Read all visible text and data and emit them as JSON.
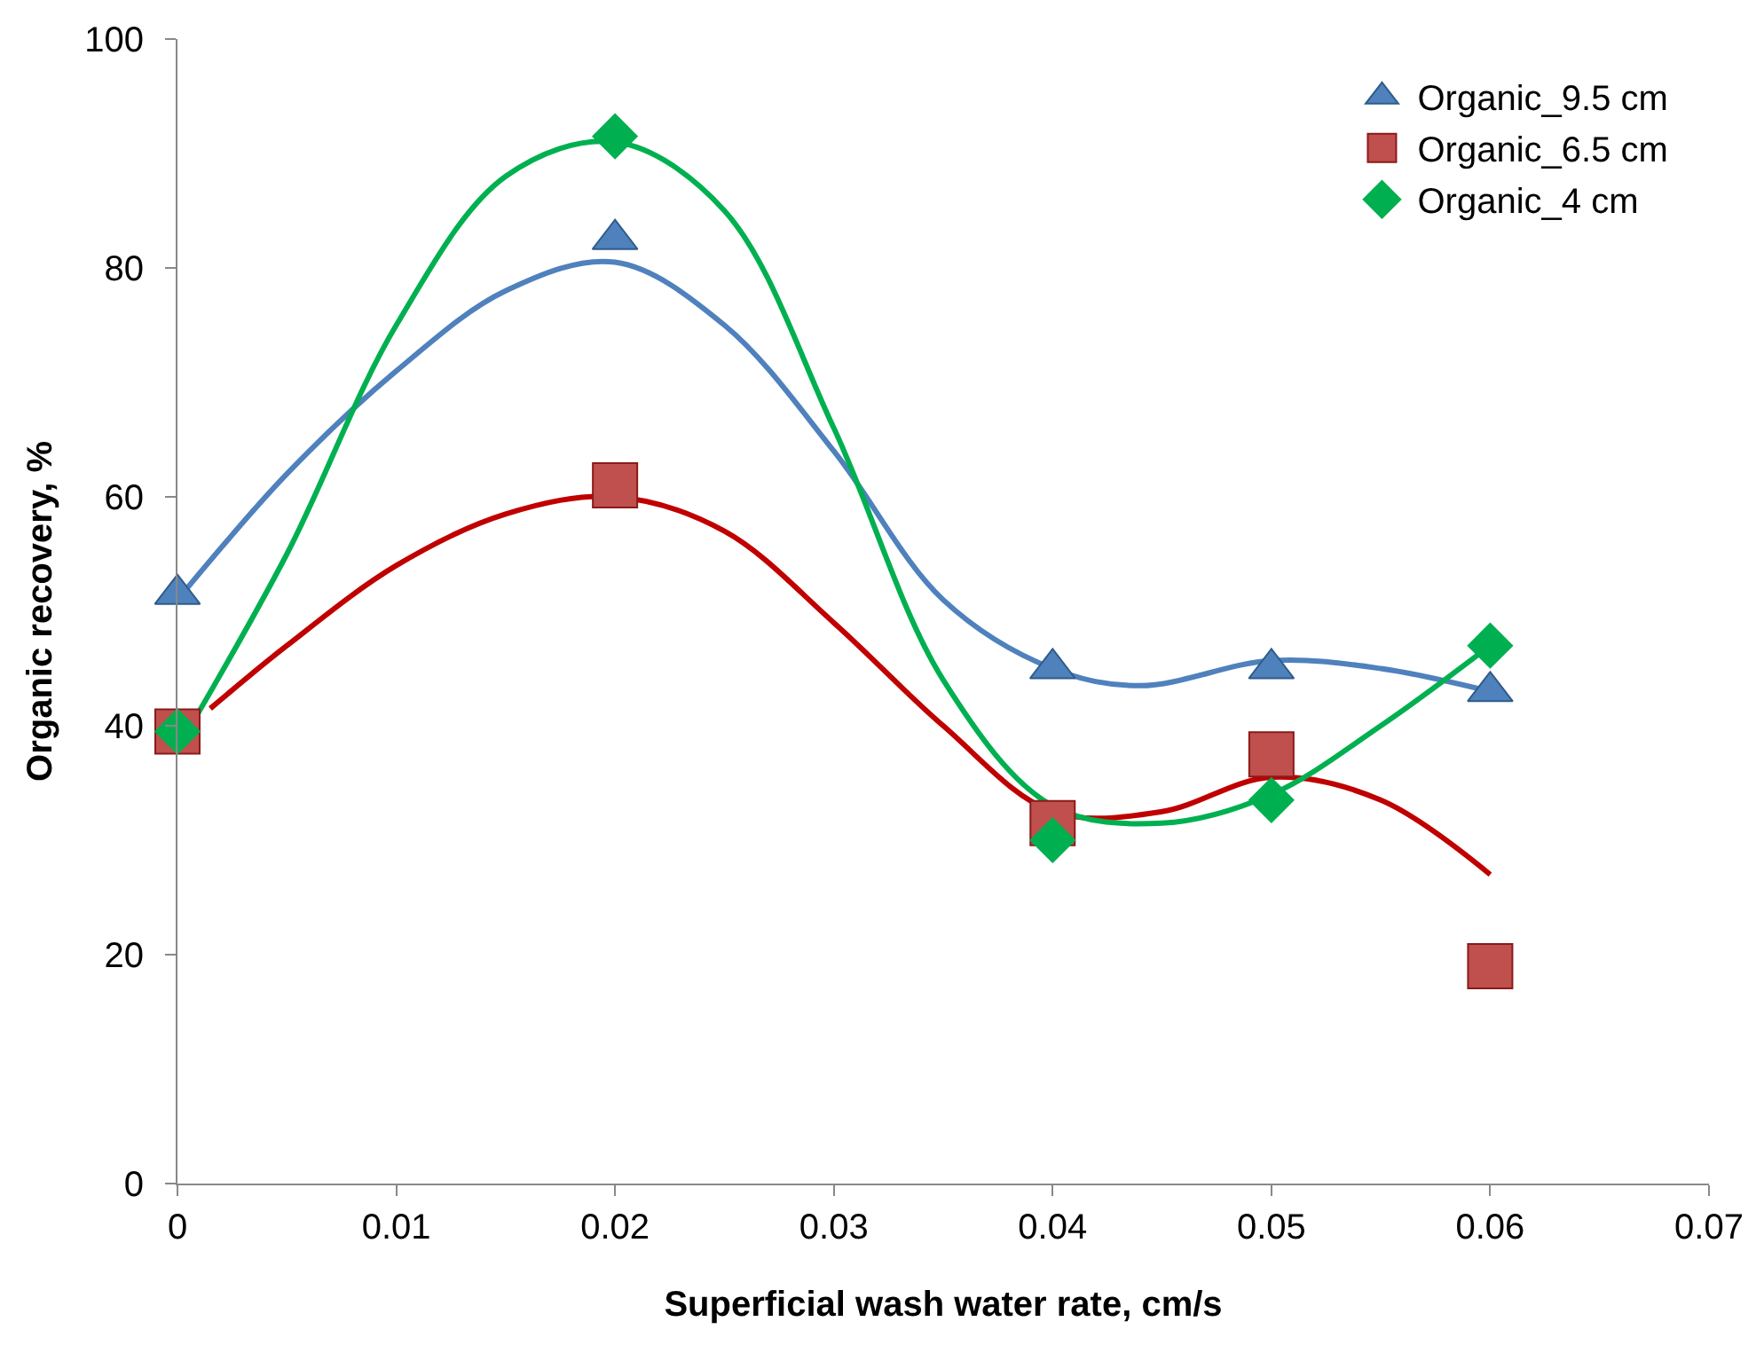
{
  "chart_data": {
    "type": "scatter",
    "xlabel": "Superficial wash water rate, cm/s",
    "ylabel": "Organic recovery, %",
    "x": [
      0,
      0.02,
      0.04,
      0.05,
      0.06
    ],
    "xlim": [
      0,
      0.07
    ],
    "xticks": [
      0,
      0.01,
      0.02,
      0.03,
      0.04,
      0.05,
      0.06,
      0.07
    ],
    "ylim": [
      0,
      100
    ],
    "yticks": [
      0,
      20,
      40,
      60,
      80,
      100
    ],
    "legend": "top right",
    "series": [
      {
        "name": "Organic_9.5 cm",
        "color": "#4f81bd",
        "marker": "triangle",
        "values": [
          51.5,
          82.5,
          45,
          45,
          43
        ]
      },
      {
        "name": "Organic_6.5 cm",
        "color": "#c0504d",
        "marker": "square",
        "values": [
          39.5,
          61,
          31.5,
          37.5,
          19
        ]
      },
      {
        "name": "Organic_4 cm",
        "color": "#00b050",
        "marker": "diamond",
        "values": [
          39.5,
          91.5,
          30,
          33.5,
          47
        ]
      },
      {
        "type": "line",
        "color": "#4f81bd",
        "marker": "none",
        "x": [
          0,
          0.005,
          0.01,
          0.015,
          0.02,
          0.025,
          0.03,
          0.035,
          0.04,
          0.044,
          0.05,
          0.055,
          0.06
        ],
        "values": [
          51,
          62,
          71,
          78,
          80.5,
          75,
          64,
          51,
          45,
          43.5,
          45.7,
          45,
          43
        ]
      },
      {
        "type": "line",
        "color": "#c00000",
        "marker": "none",
        "x": [
          0.0015,
          0.005,
          0.01,
          0.015,
          0.02,
          0.025,
          0.03,
          0.035,
          0.04,
          0.045,
          0.05,
          0.055,
          0.06
        ],
        "values": [
          41.5,
          47,
          54,
          58.5,
          60,
          57,
          49,
          40,
          32.5,
          32.5,
          35.5,
          33.5,
          27
        ]
      },
      {
        "type": "line",
        "color": "#00b050",
        "marker": "none",
        "x": [
          0,
          0.005,
          0.01,
          0.015,
          0.02,
          0.025,
          0.03,
          0.035,
          0.04,
          0.045,
          0.05,
          0.055,
          0.06
        ],
        "values": [
          38,
          55,
          75,
          88,
          91,
          85,
          66,
          44,
          33,
          31.5,
          34,
          40,
          47
        ]
      }
    ]
  }
}
